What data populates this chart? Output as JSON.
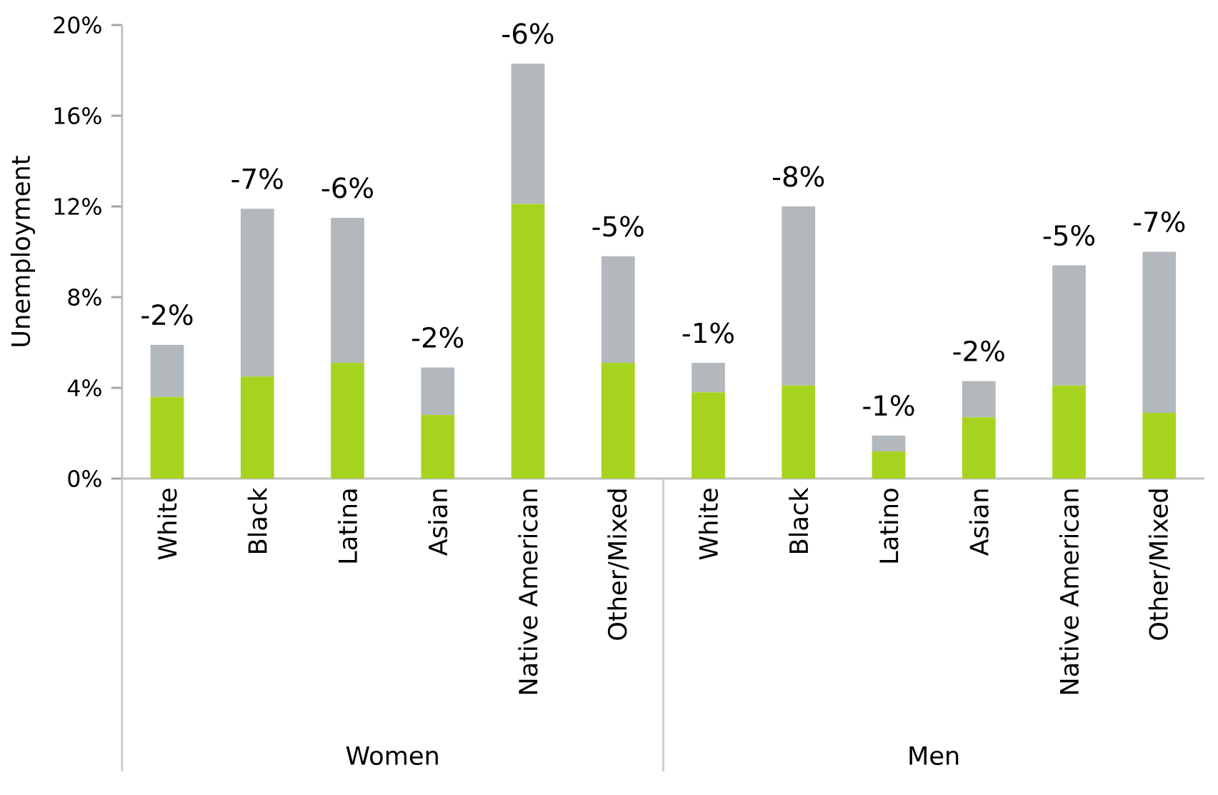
{
  "chart_data": {
    "type": "bar",
    "stacked": true,
    "ylabel": "Unemployment",
    "categories": [
      "White",
      "Black",
      "Latina",
      "Asian",
      "Native American",
      "Other/Mixed",
      "White",
      "Black",
      "Latino",
      "Asian",
      "Native American",
      "Other/Mixed"
    ],
    "series": [
      {
        "color": "#a6d41e",
        "values": [
          3.6,
          4.5,
          5.1,
          2.8,
          12.1,
          5.1,
          3.8,
          4.1,
          1.2,
          2.7,
          4.1,
          2.9
        ]
      },
      {
        "color": "#b3b8bd",
        "values": [
          2.3,
          7.4,
          6.4,
          2.1,
          6.2,
          4.7,
          1.3,
          7.9,
          0.7,
          1.6,
          5.3,
          7.1
        ]
      }
    ],
    "ylim": [
      0,
      20
    ],
    "yticks": [
      {
        "value": 0,
        "label": "0%"
      },
      {
        "value": 4,
        "label": "4%"
      },
      {
        "value": 8,
        "label": "8%"
      },
      {
        "value": 12,
        "label": "12%"
      },
      {
        "value": 16,
        "label": "16%"
      },
      {
        "value": 20,
        "label": "20%"
      }
    ],
    "annotations": [
      "-2%",
      "-7%",
      "-6%",
      "-2%",
      "-6%",
      "-5%",
      "-1%",
      "-8%",
      "-1%",
      "-2%",
      "-5%",
      "-7%",
      "Women",
      "Men"
    ],
    "grid": false
  }
}
